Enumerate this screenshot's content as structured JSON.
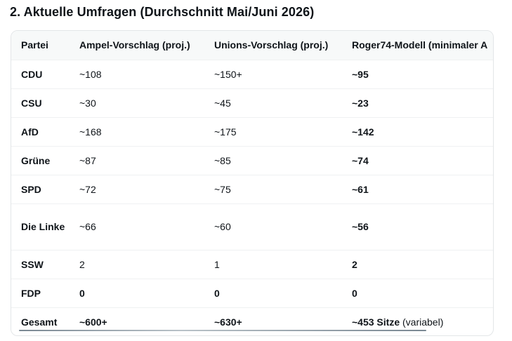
{
  "heading": "2. Aktuelle Umfragen (Durchschnitt Mai/Juni 2026)",
  "table": {
    "headers": [
      "Partei",
      "Ampel-Vorschlag (proj.)",
      "Unions-Vorschlag (proj.)",
      "Roger74-Modell (minimaler A"
    ],
    "rows": [
      [
        "CDU",
        "~108",
        "~150+",
        "~95"
      ],
      [
        "CSU",
        "~30",
        "~45",
        "~23"
      ],
      [
        "AfD",
        "~168",
        "~175",
        "~142"
      ],
      [
        "Grüne",
        "~87",
        "~85",
        "~74"
      ],
      [
        "SPD",
        "~72",
        "~75",
        "~61"
      ],
      [
        "Die Linke",
        "~66",
        "~60",
        "~56"
      ],
      [
        "SSW",
        "2",
        "1",
        "2"
      ],
      [
        "FDP",
        "0",
        "0",
        "0"
      ],
      [
        "Gesamt",
        "~600+",
        "~630+",
        "~453 Sitze"
      ]
    ],
    "total_suffix": "(variabel)"
  }
}
